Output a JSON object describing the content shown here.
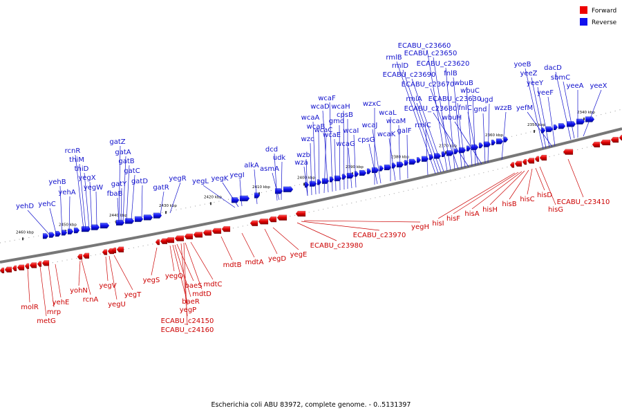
{
  "legend": {
    "forward": {
      "label": "Forward",
      "color": "#ee0000"
    },
    "reverse": {
      "label": "Reverse",
      "color": "#1010ee"
    }
  },
  "caption": "Escherichia coli ABU 83972, complete genome. - 0..5131397",
  "ruler_ticks": [
    "2460 kbp",
    "2450 kbp",
    "2440 kbp",
    "2430 kbp",
    "2420 kbp",
    "2410 kbp",
    "2400 kbp",
    "2390 kbp",
    "2380 kbp",
    "2370 kbp",
    "2360 kbp",
    "2350 kbp",
    "2340 kbp"
  ],
  "reverse_genes": [
    "yehD",
    "yehC",
    "yehB",
    "yehA",
    "rcnR",
    "thiM",
    "thiD",
    "yegX",
    "yegW",
    "gatZ",
    "gatA",
    "gatB",
    "gatC",
    "gatY",
    "gatD",
    "fbaB",
    "gatR",
    "yegR",
    "yegL",
    "yegK",
    "yegI",
    "alkA",
    "dcd",
    "udk",
    "asmA",
    "wzb",
    "wza",
    "wzc",
    "wcaA",
    "wcaB",
    "wcaC",
    "wcaD",
    "wcaF",
    "wcaE",
    "gmd",
    "wcaH",
    "cpsB",
    "wcaG",
    "wcaI",
    "wzxC",
    "cpsG",
    "wcaJ",
    "wcaL",
    "wcaK",
    "wcaM",
    "galF",
    "rmlC",
    "rmlB",
    "rmlD",
    "rmlA",
    "ECABU_c23690",
    "ECABU_c23660",
    "ECABU_c23650",
    "ECABU_c23620",
    "ECABU_c23670",
    "fnlB",
    "ECABU_c23630",
    "ECABU_c23680",
    "wbuB",
    "wbuC",
    "fnlC",
    "wbuH",
    "gnd",
    "ugd",
    "wzzB",
    "yoeB",
    "yeeZ",
    "yeeY",
    "yefM",
    "yeeF",
    "dacD",
    "sbmC",
    "yeeA",
    "yeeX"
  ],
  "forward_genes": [
    "molR",
    "metG",
    "mrp",
    "yehE",
    "yohN",
    "rcnA",
    "yegV",
    "yegU",
    "yegT",
    "yegS",
    "yegQ",
    "yegP",
    "baeS",
    "baeR",
    "mdtD",
    "mdtC",
    "ECABU_c24150",
    "ECABU_c24160",
    "mdtB",
    "mdtA",
    "yegD",
    "yegE",
    "ECABU_c23980",
    "ECABU_c23970",
    "yegH",
    "hisI",
    "hisF",
    "hisA",
    "hisH",
    "hisB",
    "hisC",
    "hisD",
    "hisG",
    "ECABU_c23410"
  ]
}
